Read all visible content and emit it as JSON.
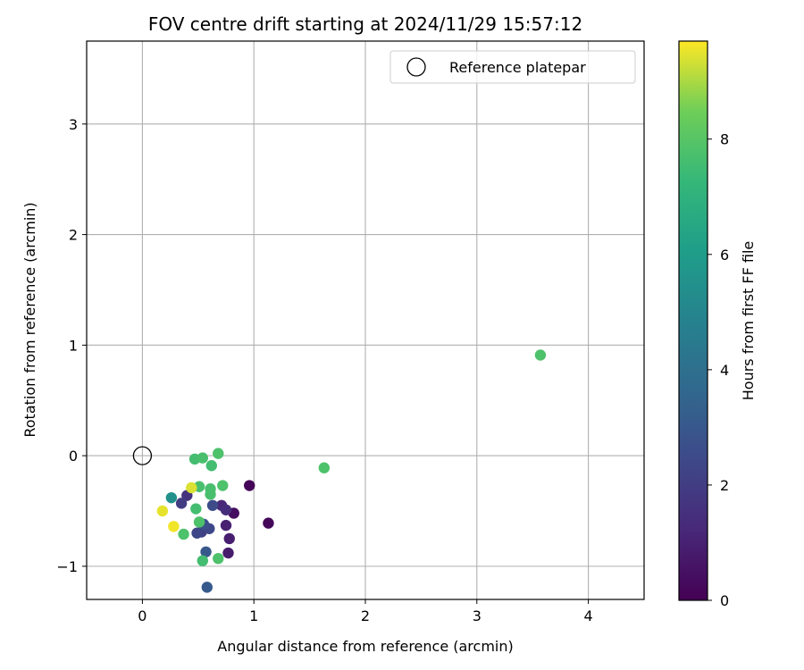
{
  "chart_data": {
    "type": "scatter",
    "title": "FOV centre drift starting at 2024/11/29 15:57:12",
    "xlabel": "Angular distance from reference (arcmin)",
    "ylabel": "Rotation from reference (arcmin)",
    "xlim": [
      -0.5,
      4.5
    ],
    "ylim": [
      -1.3,
      3.75
    ],
    "xticks": [
      0,
      1,
      2,
      3,
      4
    ],
    "yticks": [
      -1,
      0,
      1,
      2,
      3
    ],
    "xtick_labels": [
      "0",
      "1",
      "2",
      "3",
      "4"
    ],
    "ytick_labels": [
      "−1",
      "0",
      "1",
      "2",
      "3"
    ],
    "grid": true,
    "legend": {
      "placement": "top-right",
      "entries": [
        "Reference platepar"
      ]
    },
    "reference_point": {
      "x": 0,
      "y": 0,
      "label": "Reference platepar"
    },
    "colorbar": {
      "label": "Hours from first FF file",
      "colormap": "viridis",
      "range": [
        0,
        9.7
      ],
      "ticks": [
        0,
        2,
        4,
        6,
        8
      ],
      "tick_labels": [
        "0",
        "2",
        "4",
        "6",
        "8"
      ]
    },
    "points": [
      {
        "x": 0.96,
        "y": -0.27,
        "c": 0.1
      },
      {
        "x": 1.13,
        "y": -0.61,
        "c": 0.2
      },
      {
        "x": 0.82,
        "y": -0.52,
        "c": 0.4
      },
      {
        "x": 0.77,
        "y": -0.88,
        "c": 0.8
      },
      {
        "x": 0.78,
        "y": -0.75,
        "c": 0.9
      },
      {
        "x": 0.75,
        "y": -0.63,
        "c": 1.0
      },
      {
        "x": 0.71,
        "y": -0.45,
        "c": 1.2
      },
      {
        "x": 0.75,
        "y": -0.49,
        "c": 1.4
      },
      {
        "x": 0.4,
        "y": -0.36,
        "c": 1.6
      },
      {
        "x": 0.35,
        "y": -0.43,
        "c": 2.0
      },
      {
        "x": 0.53,
        "y": -0.69,
        "c": 2.1
      },
      {
        "x": 0.49,
        "y": -0.7,
        "c": 2.3
      },
      {
        "x": 0.6,
        "y": -0.66,
        "c": 2.4
      },
      {
        "x": 0.63,
        "y": -0.45,
        "c": 2.5
      },
      {
        "x": 0.55,
        "y": -0.62,
        "c": 2.7
      },
      {
        "x": 0.57,
        "y": -0.87,
        "c": 3.0
      },
      {
        "x": 0.58,
        "y": -1.19,
        "c": 3.1
      },
      {
        "x": 0.26,
        "y": -0.38,
        "c": 5.5
      },
      {
        "x": 0.47,
        "y": -0.03,
        "c": 7.6
      },
      {
        "x": 0.54,
        "y": -0.02,
        "c": 7.7
      },
      {
        "x": 0.68,
        "y": 0.02,
        "c": 7.8
      },
      {
        "x": 0.62,
        "y": -0.09,
        "c": 7.6
      },
      {
        "x": 0.51,
        "y": -0.28,
        "c": 7.7
      },
      {
        "x": 0.61,
        "y": -0.3,
        "c": 7.7
      },
      {
        "x": 0.61,
        "y": -0.35,
        "c": 7.7
      },
      {
        "x": 0.72,
        "y": -0.27,
        "c": 7.8
      },
      {
        "x": 0.48,
        "y": -0.48,
        "c": 7.6
      },
      {
        "x": 0.51,
        "y": -0.6,
        "c": 7.8
      },
      {
        "x": 0.37,
        "y": -0.71,
        "c": 7.8
      },
      {
        "x": 0.54,
        "y": -0.95,
        "c": 7.6
      },
      {
        "x": 0.68,
        "y": -0.93,
        "c": 7.8
      },
      {
        "x": 1.63,
        "y": -0.11,
        "c": 7.8
      },
      {
        "x": 3.57,
        "y": 0.91,
        "c": 7.8
      },
      {
        "x": 0.44,
        "y": -0.29,
        "c": 9.4
      },
      {
        "x": 0.18,
        "y": -0.5,
        "c": 9.5
      },
      {
        "x": 0.28,
        "y": -0.64,
        "c": 9.6
      }
    ]
  }
}
